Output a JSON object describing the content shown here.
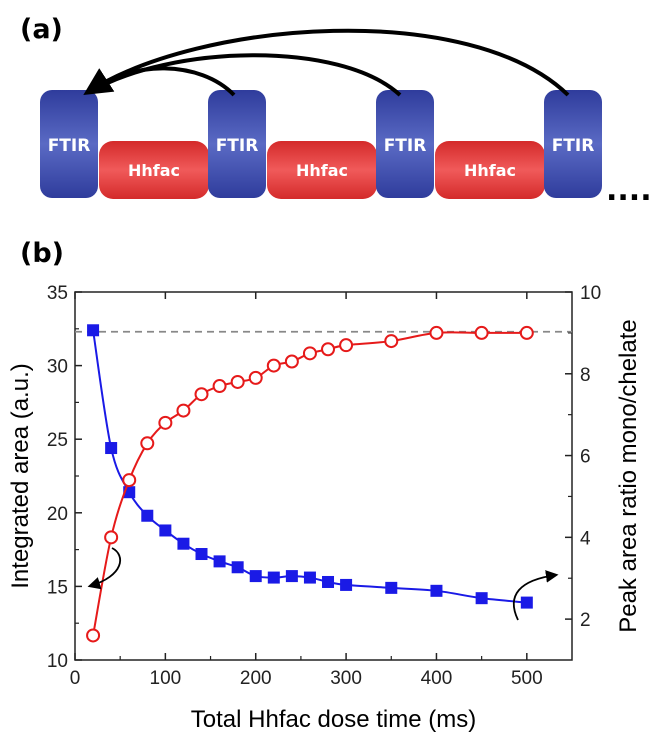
{
  "panel_a": {
    "label": "(a)",
    "blocks": [
      {
        "type": "ftir",
        "label": "FTIR"
      },
      {
        "type": "hhfac",
        "label": "Hhfac"
      },
      {
        "type": "ftir",
        "label": "FTIR"
      },
      {
        "type": "hhfac",
        "label": "Hhfac"
      },
      {
        "type": "ftir",
        "label": "FTIR"
      },
      {
        "type": "hhfac",
        "label": "Hhfac"
      },
      {
        "type": "ftir",
        "label": "FTIR"
      }
    ],
    "ellipsis": "....",
    "colors": {
      "ftir": "#3f4ea8",
      "hhfac": "#e23a3a",
      "arrow": "#000000"
    }
  },
  "panel_b": {
    "label": "(b)"
  },
  "chart_data": {
    "type": "scatter",
    "xlabel": "Total Hhfac dose time (ms)",
    "ylabel_left": "Integrated area (a.u.)",
    "ylabel_right": "Peak area ratio mono/chelate",
    "xlim": [
      0,
      550
    ],
    "ylim_left": [
      10,
      35
    ],
    "ylim_right": [
      1,
      10
    ],
    "xticks": [
      0,
      100,
      200,
      300,
      400,
      500
    ],
    "yticks_left": [
      10,
      15,
      20,
      25,
      30,
      35
    ],
    "yticks_right": [
      2,
      4,
      6,
      8,
      10
    ],
    "reference_line": {
      "axis": "left",
      "y": 32.3,
      "style": "dashed",
      "color": "#888888"
    },
    "series": [
      {
        "axis": "left",
        "marker": "square",
        "color": "#1a1ae6",
        "x": [
          20,
          40,
          60,
          80,
          100,
          120,
          140,
          160,
          180,
          200,
          220,
          240,
          260,
          280,
          300,
          350,
          400,
          450,
          500
        ],
        "y": [
          32.4,
          24.4,
          21.4,
          19.8,
          18.8,
          17.9,
          17.2,
          16.7,
          16.3,
          15.7,
          15.6,
          15.7,
          15.6,
          15.3,
          15.1,
          14.9,
          14.7,
          14.2,
          13.9
        ]
      },
      {
        "axis": "right",
        "marker": "circle-open",
        "color": "#e61a1a",
        "x": [
          20,
          40,
          60,
          80,
          100,
          120,
          140,
          160,
          180,
          200,
          220,
          240,
          260,
          280,
          300,
          350,
          400,
          450,
          500
        ],
        "y": [
          1.6,
          4.0,
          5.4,
          6.3,
          6.8,
          7.1,
          7.5,
          7.7,
          7.8,
          7.9,
          8.2,
          8.3,
          8.5,
          8.6,
          8.7,
          8.8,
          9.0,
          9.0,
          9.0
        ]
      }
    ],
    "annotations": [
      {
        "type": "curved-arrow",
        "points_to": "left axis",
        "near_x": 40
      },
      {
        "type": "curved-arrow",
        "points_to": "right axis",
        "near_x": 470
      }
    ]
  }
}
